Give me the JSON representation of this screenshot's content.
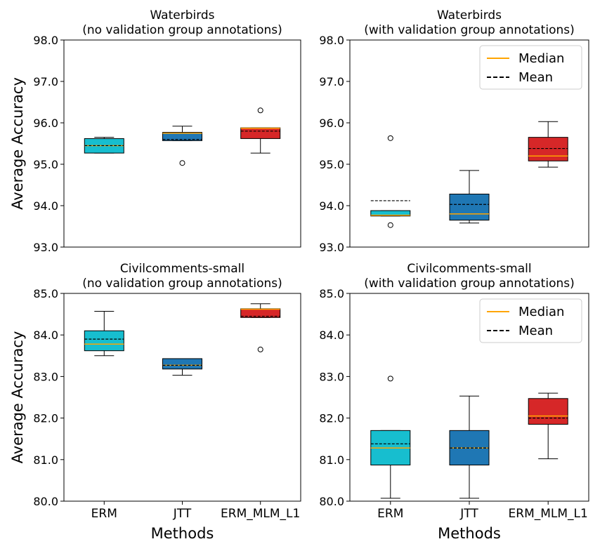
{
  "chart_data": [
    {
      "type": "box",
      "title": "Waterbirds",
      "subtitle": "(no validation group annotations)",
      "xlabel": "",
      "ylabel": "Average Accuracy",
      "ylim": [
        93.0,
        98.0
      ],
      "yticks": [
        "93.0",
        "94.0",
        "95.0",
        "96.0",
        "97.0",
        "98.0"
      ],
      "categories": [
        "ERM",
        "JTT",
        "ERM_MLM_L1"
      ],
      "colors": [
        "#17becf",
        "#1f77b4",
        "#d62728"
      ],
      "boxes": [
        {
          "whisker_low": 95.27,
          "q1": 95.27,
          "median": 95.45,
          "mean": 95.45,
          "q3": 95.62,
          "whisker_high": 95.65,
          "outliers": []
        },
        {
          "whisker_low": 95.57,
          "q1": 95.57,
          "median": 95.75,
          "mean": 95.6,
          "q3": 95.77,
          "whisker_high": 95.92,
          "outliers": [
            95.03
          ]
        },
        {
          "whisker_low": 95.27,
          "q1": 95.62,
          "median": 95.87,
          "mean": 95.8,
          "q3": 95.88,
          "whisker_high": 95.88,
          "outliers": [
            96.3
          ]
        }
      ]
    },
    {
      "type": "box",
      "title": "Waterbirds",
      "subtitle": "(with validation group annotations)",
      "xlabel": "",
      "ylabel": "",
      "ylim": [
        93.0,
        98.0
      ],
      "yticks": [
        "93.0",
        "94.0",
        "95.0",
        "96.0",
        "97.0",
        "98.0"
      ],
      "categories": [
        "ERM",
        "JTT",
        "ERM_MLM_L1"
      ],
      "colors": [
        "#17becf",
        "#1f77b4",
        "#d62728"
      ],
      "legend": {
        "position": "top-right",
        "median_label": "Median",
        "mean_label": "Mean"
      },
      "boxes": [
        {
          "whisker_low": 93.75,
          "q1": 93.75,
          "median": 93.77,
          "mean": 94.12,
          "q3": 93.88,
          "whisker_high": 93.88,
          "outliers": [
            93.53,
            95.63
          ]
        },
        {
          "whisker_low": 93.58,
          "q1": 93.65,
          "median": 93.8,
          "mean": 94.03,
          "q3": 94.28,
          "whisker_high": 94.85,
          "outliers": []
        },
        {
          "whisker_low": 94.93,
          "q1": 95.08,
          "median": 95.2,
          "mean": 95.38,
          "q3": 95.65,
          "whisker_high": 96.03,
          "outliers": []
        }
      ]
    },
    {
      "type": "box",
      "title": "Civilcomments-small",
      "subtitle": "(no validation group annotations)",
      "xlabel": "Methods",
      "ylabel": "Average Accuracy",
      "ylim": [
        80.0,
        85.0
      ],
      "yticks": [
        "80.0",
        "81.0",
        "82.0",
        "83.0",
        "84.0",
        "85.0"
      ],
      "categories": [
        "ERM",
        "JTT",
        "ERM_MLM_L1"
      ],
      "colors": [
        "#17becf",
        "#1f77b4",
        "#d62728"
      ],
      "boxes": [
        {
          "whisker_low": 83.5,
          "q1": 83.62,
          "median": 83.78,
          "mean": 83.9,
          "q3": 84.1,
          "whisker_high": 84.57,
          "outliers": []
        },
        {
          "whisker_low": 83.03,
          "q1": 83.18,
          "median": 83.27,
          "mean": 83.27,
          "q3": 83.43,
          "whisker_high": 83.43,
          "outliers": []
        },
        {
          "whisker_low": 84.42,
          "q1": 84.42,
          "median": 84.62,
          "mean": 84.45,
          "q3": 84.63,
          "whisker_high": 84.75,
          "outliers": [
            83.65
          ]
        }
      ]
    },
    {
      "type": "box",
      "title": "Civilcomments-small",
      "subtitle": "(with validation group annotations)",
      "xlabel": "Methods",
      "ylabel": "",
      "ylim": [
        80.0,
        85.0
      ],
      "yticks": [
        "80.0",
        "81.0",
        "82.0",
        "83.0",
        "84.0",
        "85.0"
      ],
      "categories": [
        "ERM",
        "JTT",
        "ERM_MLM_L1"
      ],
      "colors": [
        "#17becf",
        "#1f77b4",
        "#d62728"
      ],
      "legend": {
        "position": "top-right",
        "median_label": "Median",
        "mean_label": "Mean"
      },
      "boxes": [
        {
          "whisker_low": 80.07,
          "q1": 80.87,
          "median": 81.28,
          "mean": 81.38,
          "q3": 81.7,
          "whisker_high": 81.7,
          "outliers": [
            82.95
          ]
        },
        {
          "whisker_low": 80.07,
          "q1": 80.87,
          "median": 81.28,
          "mean": 81.28,
          "q3": 81.7,
          "whisker_high": 82.53,
          "outliers": []
        },
        {
          "whisker_low": 81.02,
          "q1": 81.85,
          "median": 82.05,
          "mean": 82.0,
          "q3": 82.47,
          "whisker_high": 82.6,
          "outliers": []
        }
      ]
    }
  ],
  "style": {
    "median_color": "#ffa500",
    "mean_color": "#000000",
    "axis_color": "#000000",
    "background": "#ffffff"
  }
}
